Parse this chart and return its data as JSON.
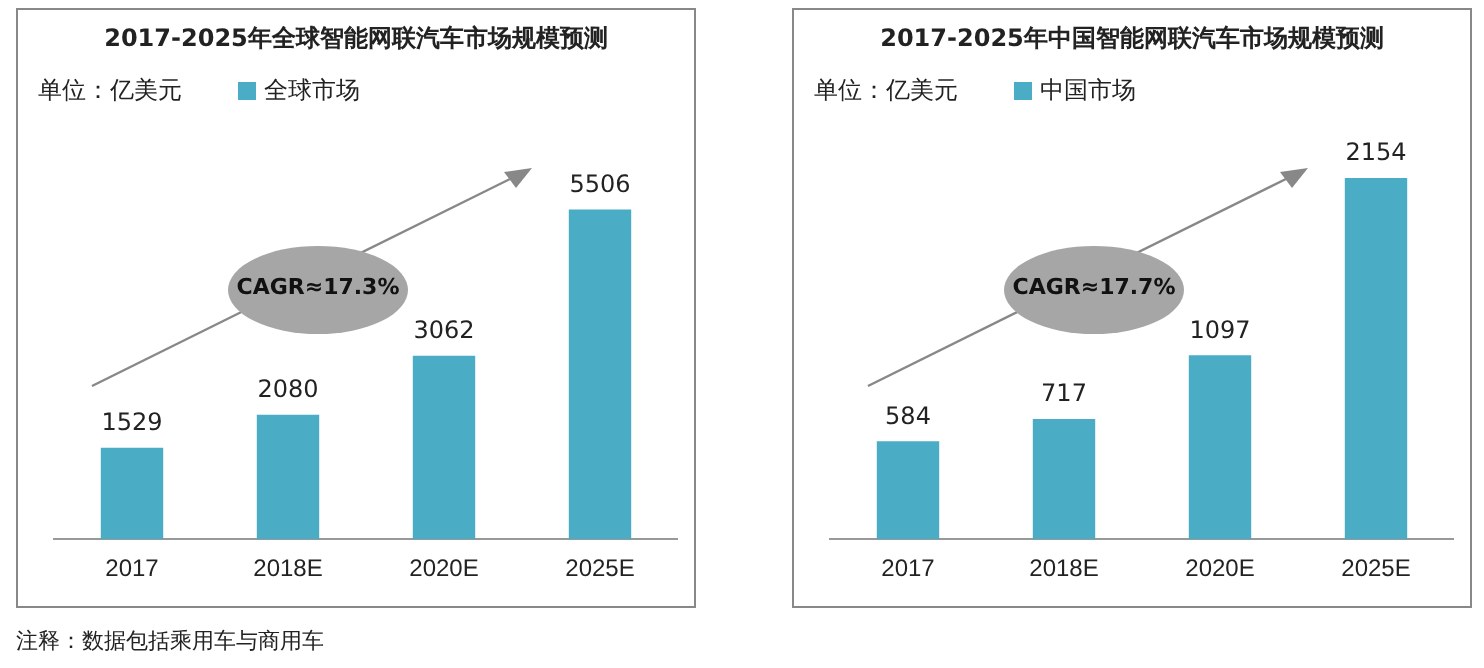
{
  "chart_data": [
    {
      "type": "bar",
      "title": "2017-2025年全球智能网联汽车市场规模预测",
      "categories": [
        "2017",
        "2018E",
        "2020E",
        "2025E"
      ],
      "series": [
        {
          "name": "全球市场",
          "color": "#4bacc6",
          "values": [
            1529,
            2080,
            3062,
            5506
          ]
        }
      ],
      "data_labels": true,
      "legend": "top left",
      "relative": false,
      "annotations": [
        "单位：亿美元",
        "CAGR≈17.3%",
        "注释：数据包括乘用车与商用车"
      ]
    },
    {
      "type": "bar",
      "title": "2017-2025年中国智能网联汽车市场规模预测",
      "categories": [
        "2017",
        "2018E",
        "2020E",
        "2025E"
      ],
      "series": [
        {
          "name": "中国市场",
          "color": "#4bacc6",
          "values": [
            584,
            717,
            1097,
            2154
          ]
        }
      ],
      "data_labels": true,
      "legend": "top left",
      "annotations": [
        "单位：亿美元",
        "CAGR≈17.7%"
      ]
    }
  ]
}
